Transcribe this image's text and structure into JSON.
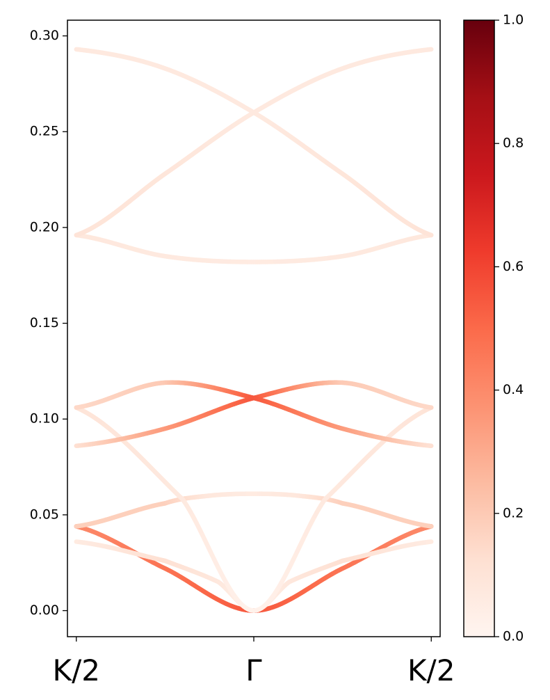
{
  "chart_data": {
    "type": "line",
    "title": "",
    "xlabel": "",
    "ylabel": "",
    "x_ticks": [
      {
        "pos": -1,
        "label": "K/2"
      },
      {
        "pos": 0,
        "label": "Γ"
      },
      {
        "pos": 1,
        "label": "K/2"
      }
    ],
    "xlim": [
      -1.05,
      1.05
    ],
    "ylim": [
      -0.0136,
      0.3082
    ],
    "y_ticks": [
      "0.00",
      "0.05",
      "0.10",
      "0.15",
      "0.20",
      "0.25",
      "0.30"
    ],
    "grid": false,
    "colormap": "Reds",
    "colorbar": {
      "min": 0.0,
      "max": 1.0,
      "ticks": [
        "0.0",
        "0.2",
        "0.4",
        "0.6",
        "0.8",
        "1.0"
      ],
      "stops": [
        "#fff5f0",
        "#fee0d2",
        "#fcbba1",
        "#fc9272",
        "#fb6a4a",
        "#ef3b2c",
        "#cb181d",
        "#a50f15",
        "#67000d"
      ]
    },
    "series": [
      {
        "points": [
          [
            -1,
            0.044,
            0.4
          ],
          [
            -0.5,
            0.022,
            0.47
          ],
          [
            0,
            0.0,
            0.55
          ],
          [
            0.5,
            0.022,
            0.47
          ],
          [
            1,
            0.044,
            0.4
          ]
        ]
      },
      {
        "points": [
          [
            -1,
            0.036,
            0.06
          ],
          [
            -0.5,
            0.026,
            0.12
          ],
          [
            -0.2,
            0.015,
            0.08
          ],
          [
            0,
            0.0,
            0.03
          ],
          [
            0.2,
            0.015,
            0.08
          ],
          [
            0.5,
            0.026,
            0.12
          ],
          [
            1,
            0.036,
            0.06
          ]
        ]
      },
      {
        "points": [
          [
            -1,
            0.044,
            0.18
          ],
          [
            -0.5,
            0.056,
            0.18
          ],
          [
            -0.25,
            0.06,
            0.08
          ],
          [
            0,
            0.061,
            0.06
          ],
          [
            0.25,
            0.06,
            0.08
          ],
          [
            0.5,
            0.056,
            0.18
          ],
          [
            1,
            0.044,
            0.18
          ]
        ]
      },
      {
        "points": [
          [
            -1,
            0.106,
            0.1
          ],
          [
            -0.4,
            0.058,
            0.07
          ],
          [
            0,
            0.0,
            0.02
          ],
          [
            0.4,
            0.058,
            0.07
          ],
          [
            1,
            0.106,
            0.1
          ]
        ]
      },
      {
        "points": [
          [
            -1,
            0.086,
            0.12
          ],
          [
            -0.5,
            0.095,
            0.35
          ],
          [
            0,
            0.111,
            0.55
          ],
          [
            0.5,
            0.119,
            0.2
          ],
          [
            1,
            0.106,
            0.15
          ]
        ]
      },
      {
        "points": [
          [
            -1,
            0.106,
            0.15
          ],
          [
            -0.5,
            0.119,
            0.2
          ],
          [
            0,
            0.111,
            0.55
          ],
          [
            0.5,
            0.095,
            0.35
          ],
          [
            1,
            0.086,
            0.12
          ]
        ]
      },
      {
        "points": [
          [
            -1,
            0.196,
            0.08
          ],
          [
            -0.5,
            0.185,
            0.07
          ],
          [
            0,
            0.182,
            0.06
          ],
          [
            0.5,
            0.185,
            0.07
          ],
          [
            1,
            0.196,
            0.08
          ]
        ]
      },
      {
        "points": [
          [
            -1,
            0.196,
            0.1
          ],
          [
            -0.5,
            0.228,
            0.09
          ],
          [
            0,
            0.26,
            0.07
          ],
          [
            0.5,
            0.283,
            0.07
          ],
          [
            1,
            0.293,
            0.07
          ]
        ]
      },
      {
        "points": [
          [
            -1,
            0.293,
            0.07
          ],
          [
            -0.5,
            0.283,
            0.07
          ],
          [
            0,
            0.26,
            0.07
          ],
          [
            0.5,
            0.228,
            0.09
          ],
          [
            1,
            0.196,
            0.1
          ]
        ]
      }
    ]
  }
}
